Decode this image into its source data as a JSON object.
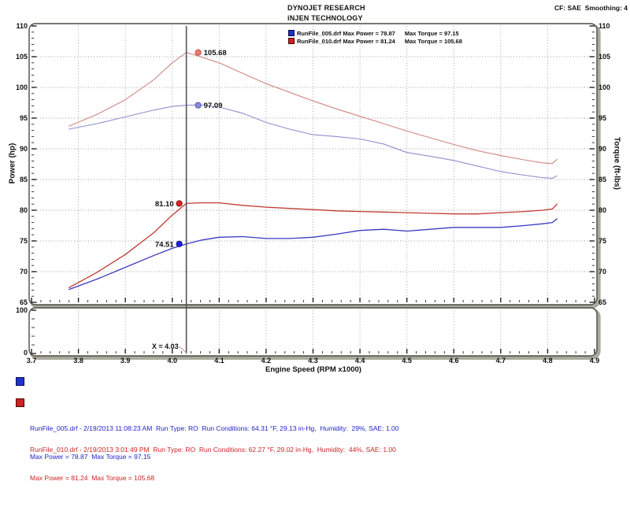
{
  "header": {
    "line1": "DYNOJET RESEARCH",
    "line2": "iNJEN TECHNOLOGY",
    "correction": "CF: SAE  Smoothing: 4"
  },
  "legend": {
    "runs": [
      {
        "file": "RunFile_005.drf",
        "power": "Max Power = 78.87",
        "torque": "Max Torque = 97.15",
        "color": "#2233bb",
        "border": "#000a55"
      },
      {
        "file": "RunFile_010.drf",
        "power": "Max Power = 81.24",
        "torque": "Max Torque = 105.68",
        "color": "#cc2222",
        "border": "#550000"
      }
    ]
  },
  "run_info": [
    {
      "line1": "RunFile_005.drf - 2/19/2013 11:08:23 AM  Run Type: RO  Run Conditions: 64.31 °F, 29.13 in-Hg,  Humidity:  29%, SAE: 1.00",
      "line2": "Max Power = 78.87  Max Torque = 97.15",
      "color": "#2323cc",
      "swatch": "#2233cc",
      "swatch_border": "#000a55"
    },
    {
      "line1": "RunFile_010.drf - 2/19/2013 3:01:49 PM  Run Type: RO  Run Conditions: 62.27 °F, 29.02 in-Hg,  Humidity:  44%, SAE: 1.00",
      "line2": "Max Power = 81.24  Max Torque = 105.68",
      "color": "#cc2323",
      "swatch": "#cc2222",
      "swatch_border": "#550000"
    }
  ],
  "chart_data": {
    "type": "line",
    "x_axis": {
      "label": "Engine Speed (RPM x1000)",
      "min": 3.7,
      "max": 4.9,
      "major_step": 0.1,
      "minor_step": 0.02,
      "ticks": [
        "3.7",
        "3.8",
        "3.9",
        "4.0",
        "4.1",
        "4.2",
        "4.3",
        "4.4",
        "4.5",
        "4.6",
        "4.7",
        "4.8",
        "4.9"
      ]
    },
    "y_axis_left": {
      "label": "Power (hp)",
      "min": 65,
      "max": 110,
      "major_step": 5,
      "minor_step": 1,
      "ticks": [
        "65",
        "70",
        "75",
        "80",
        "85",
        "90",
        "95",
        "100",
        "105",
        "110"
      ]
    },
    "y_axis_right": {
      "label": "Torque (ft-lbs)",
      "min": 65,
      "max": 110,
      "major_step": 5,
      "minor_step": 1,
      "ticks": [
        "65",
        "70",
        "75",
        "80",
        "85",
        "90",
        "95",
        "100",
        "105",
        "110"
      ]
    },
    "panel2": {
      "min": 0,
      "max": 100,
      "minor_step": 20,
      "ticks": [
        "100",
        "0"
      ]
    },
    "grid": "on",
    "colors": {
      "grid": "#9a9a9a",
      "frame": "#4c4c42",
      "frame_shadow": "#a9a99c",
      "cursor": "#55555a",
      "background": "#ffffff"
    },
    "cursor": {
      "x": 4.03,
      "readout": "X = 4.03",
      "markers": [
        {
          "label": "105.68",
          "value": 105.68,
          "series": "torque_010",
          "side": "right",
          "fill": "#ee7a72",
          "stroke": "#c05048"
        },
        {
          "label": "97.09",
          "value": 97.09,
          "series": "torque_005",
          "side": "right",
          "fill": "#8888e0",
          "stroke": "#5858b8"
        },
        {
          "label": "81.10",
          "value": 81.1,
          "series": "power_010",
          "side": "left",
          "fill": "#dd2222",
          "stroke": "#881111"
        },
        {
          "label": "74.51",
          "value": 74.51,
          "series": "power_005",
          "side": "left",
          "fill": "#2222dd",
          "stroke": "#111188"
        }
      ]
    },
    "x": [
      3.78,
      3.84,
      3.9,
      3.96,
      4.0,
      4.03,
      4.06,
      4.1,
      4.15,
      4.2,
      4.25,
      4.3,
      4.35,
      4.4,
      4.45,
      4.5,
      4.55,
      4.6,
      4.65,
      4.7,
      4.75,
      4.79,
      4.81,
      4.82
    ],
    "series": [
      {
        "id": "torque_010",
        "name": "RunFile_010 Torque (ft-lbs)",
        "color": "#cf8782",
        "width": 1.1,
        "y": [
          93.7,
          95.6,
          98.0,
          101.2,
          104.0,
          105.68,
          105.0,
          104.0,
          102.3,
          100.6,
          99.2,
          97.8,
          96.5,
          95.3,
          94.1,
          92.9,
          91.8,
          90.7,
          89.7,
          88.9,
          88.2,
          87.7,
          87.6,
          88.3
        ]
      },
      {
        "id": "torque_005",
        "name": "RunFile_005 Torque (ft-lbs)",
        "color": "#8f8fd0",
        "width": 1.1,
        "y": [
          93.2,
          94.1,
          95.2,
          96.3,
          96.9,
          97.09,
          97.15,
          96.8,
          95.8,
          94.3,
          93.2,
          92.3,
          92.0,
          91.6,
          90.8,
          89.4,
          88.8,
          88.1,
          87.2,
          86.3,
          85.7,
          85.3,
          85.2,
          85.6
        ]
      },
      {
        "id": "power_010",
        "name": "RunFile_010 Power (hp)",
        "color": "#c03a32",
        "width": 1.3,
        "y": [
          67.4,
          69.9,
          72.8,
          76.3,
          79.2,
          81.1,
          81.2,
          81.2,
          80.8,
          80.5,
          80.3,
          80.1,
          79.9,
          79.8,
          79.7,
          79.6,
          79.5,
          79.4,
          79.4,
          79.6,
          79.8,
          80.0,
          80.2,
          81.0
        ]
      },
      {
        "id": "power_005",
        "name": "RunFile_005 Power (hp)",
        "color": "#3a3ac0",
        "width": 1.3,
        "y": [
          67.1,
          68.8,
          70.7,
          72.6,
          73.8,
          74.5,
          75.1,
          75.6,
          75.7,
          75.4,
          75.4,
          75.6,
          76.1,
          76.7,
          76.9,
          76.6,
          76.9,
          77.2,
          77.2,
          77.2,
          77.5,
          77.8,
          78.0,
          78.6
        ]
      }
    ]
  }
}
